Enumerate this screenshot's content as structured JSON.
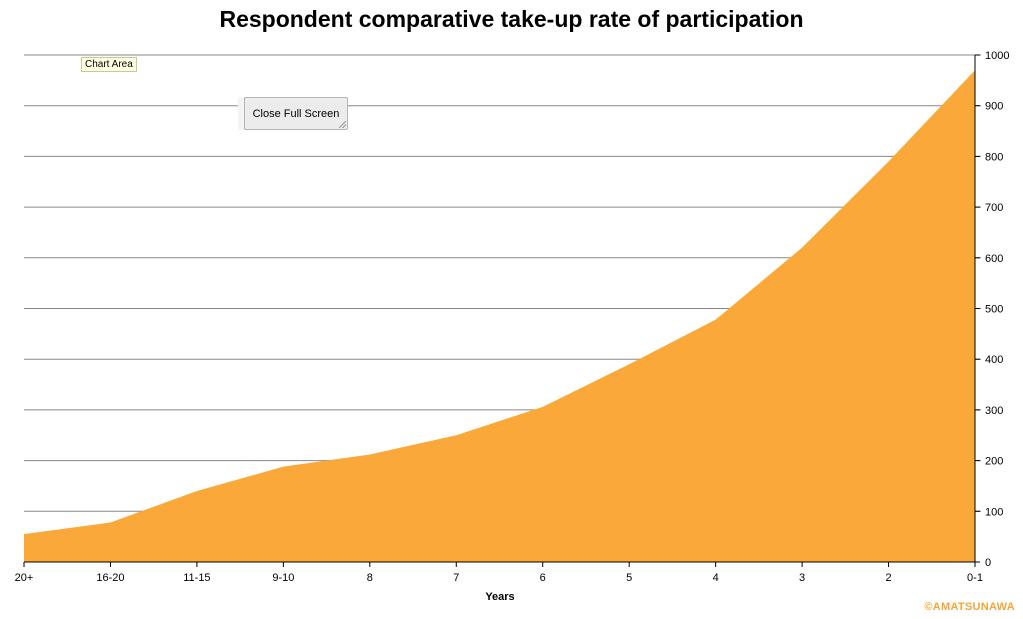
{
  "page": {
    "watermark": "©AMATSUNAWA",
    "tooltip": "Chart Area",
    "close_button_label": "Close Full Screen"
  },
  "chart_data": {
    "type": "area",
    "title": "Respondent comparative take-up rate of participation",
    "xlabel": "Years",
    "ylabel": "",
    "categories": [
      "20+",
      "16-20",
      "11-15",
      "9-10",
      "8",
      "7",
      "6",
      "5",
      "4",
      "3",
      "2",
      "0-1"
    ],
    "values": [
      55,
      78,
      140,
      188,
      212,
      250,
      306,
      390,
      478,
      620,
      790,
      970
    ],
    "ylim": [
      0,
      1000
    ],
    "yticks": [
      0,
      100,
      200,
      300,
      400,
      500,
      600,
      700,
      800,
      900,
      1000
    ],
    "y_axis_side": "right",
    "grid": true,
    "legend": "none",
    "colors": {
      "fill": "#fba83a",
      "grid": "#888888",
      "axis": "#000000"
    }
  }
}
